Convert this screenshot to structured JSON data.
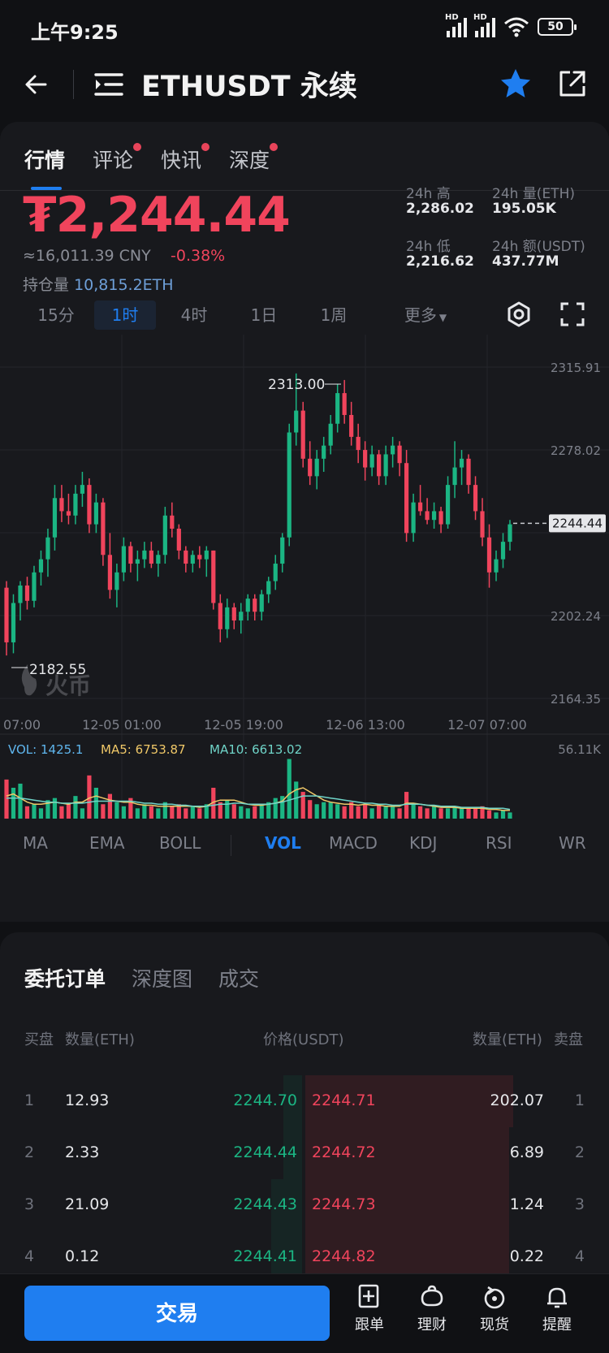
{
  "status_bar": {
    "time": "上午9:25",
    "signal_label": "HD",
    "battery": "50"
  },
  "header": {
    "title": "ETHUSDT 永续"
  },
  "tabs": [
    {
      "label": "行情",
      "dot": false
    },
    {
      "label": "评论",
      "dot": true
    },
    {
      "label": "快讯",
      "dot": true
    },
    {
      "label": "深度",
      "dot": true
    }
  ],
  "price": {
    "last": "₮2,244.44",
    "cny": "≈16,011.39 CNY",
    "change": "-0.38%",
    "open_interest_label": "持仓量",
    "open_interest_value": "10,815.2ETH"
  },
  "stats": {
    "high_label": "24h 高",
    "high": "2,286.02",
    "vol_label": "24h 量(ETH)",
    "vol": "195.05K",
    "low_label": "24h 低",
    "low": "2,216.62",
    "amount_label": "24h 额(USDT)",
    "amount": "437.77M"
  },
  "intervals": [
    "15分",
    "1时",
    "4时",
    "1日",
    "1周",
    "更多"
  ],
  "active_interval": "1时",
  "chart": {
    "y_labels": [
      "2315.91",
      "2278.02",
      "2202.24",
      "2164.35"
    ],
    "current_price_tag": "2244.44",
    "high_marker": "2313.00",
    "low_marker": "2182.55",
    "x_labels": [
      "07:00",
      "12-05 01:00",
      "12-05 19:00",
      "12-06 13:00",
      "12-07 07:00"
    ],
    "watermark": "火币",
    "vol_label": "VOL: 1425.1",
    "ma5_label": "MA5: 6753.87",
    "ma10_label": "MA10: 6613.02",
    "vol_max": "56.11K"
  },
  "chart_data": {
    "type": "candlestick",
    "ylim": [
      2164.35,
      2315.91
    ],
    "ohlc": [
      [
        2215,
        2218,
        2184,
        2190
      ],
      [
        2190,
        2212,
        2185,
        2208
      ],
      [
        2208,
        2218,
        2200,
        2216
      ],
      [
        2216,
        2220,
        2205,
        2209
      ],
      [
        2209,
        2225,
        2206,
        2222
      ],
      [
        2222,
        2232,
        2216,
        2228
      ],
      [
        2228,
        2242,
        2220,
        2238
      ],
      [
        2238,
        2262,
        2232,
        2256
      ],
      [
        2256,
        2262,
        2245,
        2250
      ],
      [
        2250,
        2258,
        2244,
        2248
      ],
      [
        2248,
        2262,
        2244,
        2258
      ],
      [
        2258,
        2268,
        2252,
        2262
      ],
      [
        2262,
        2265,
        2240,
        2244
      ],
      [
        2244,
        2258,
        2240,
        2254
      ],
      [
        2254,
        2256,
        2225,
        2230
      ],
      [
        2230,
        2240,
        2210,
        2214
      ],
      [
        2214,
        2226,
        2206,
        2222
      ],
      [
        2222,
        2238,
        2218,
        2234
      ],
      [
        2234,
        2236,
        2222,
        2226
      ],
      [
        2226,
        2232,
        2218,
        2228
      ],
      [
        2228,
        2236,
        2224,
        2232
      ],
      [
        2232,
        2236,
        2224,
        2226
      ],
      [
        2226,
        2232,
        2220,
        2230
      ],
      [
        2230,
        2252,
        2226,
        2248
      ],
      [
        2248,
        2254,
        2238,
        2242
      ],
      [
        2242,
        2244,
        2228,
        2232
      ],
      [
        2232,
        2234,
        2222,
        2226
      ],
      [
        2226,
        2232,
        2222,
        2230
      ],
      [
        2230,
        2234,
        2224,
        2228
      ],
      [
        2228,
        2234,
        2220,
        2232
      ],
      [
        2232,
        2232,
        2205,
        2208
      ],
      [
        2208,
        2212,
        2190,
        2196
      ],
      [
        2196,
        2210,
        2192,
        2206
      ],
      [
        2206,
        2208,
        2196,
        2200
      ],
      [
        2200,
        2208,
        2194,
        2204
      ],
      [
        2204,
        2212,
        2200,
        2210
      ],
      [
        2210,
        2212,
        2200,
        2204
      ],
      [
        2204,
        2214,
        2200,
        2212
      ],
      [
        2212,
        2220,
        2208,
        2218
      ],
      [
        2218,
        2230,
        2214,
        2226
      ],
      [
        2226,
        2240,
        2222,
        2238
      ],
      [
        2238,
        2290,
        2234,
        2286
      ],
      [
        2286,
        2313,
        2280,
        2296
      ],
      [
        2296,
        2300,
        2270,
        2274
      ],
      [
        2274,
        2282,
        2262,
        2266
      ],
      [
        2266,
        2278,
        2260,
        2274
      ],
      [
        2274,
        2284,
        2268,
        2280
      ],
      [
        2280,
        2294,
        2276,
        2290
      ],
      [
        2290,
        2308,
        2286,
        2304
      ],
      [
        2304,
        2310,
        2290,
        2294
      ],
      [
        2294,
        2300,
        2280,
        2284
      ],
      [
        2284,
        2290,
        2272,
        2278
      ],
      [
        2278,
        2282,
        2264,
        2270
      ],
      [
        2270,
        2280,
        2266,
        2276
      ],
      [
        2276,
        2278,
        2262,
        2266
      ],
      [
        2266,
        2280,
        2262,
        2276
      ],
      [
        2276,
        2284,
        2270,
        2280
      ],
      [
        2280,
        2282,
        2266,
        2272
      ],
      [
        2272,
        2278,
        2236,
        2240
      ],
      [
        2240,
        2258,
        2236,
        2254
      ],
      [
        2254,
        2262,
        2248,
        2250
      ],
      [
        2250,
        2256,
        2244,
        2246
      ],
      [
        2246,
        2254,
        2242,
        2250
      ],
      [
        2250,
        2252,
        2240,
        2244
      ],
      [
        2244,
        2266,
        2242,
        2262
      ],
      [
        2262,
        2282,
        2256,
        2270
      ],
      [
        2270,
        2278,
        2262,
        2274
      ],
      [
        2274,
        2276,
        2258,
        2262
      ],
      [
        2262,
        2266,
        2246,
        2250
      ],
      [
        2250,
        2256,
        2234,
        2238
      ],
      [
        2238,
        2244,
        2215,
        2222
      ],
      [
        2222,
        2232,
        2218,
        2228
      ],
      [
        2228,
        2240,
        2224,
        2236
      ],
      [
        2236,
        2246,
        2232,
        2244
      ]
    ],
    "volume": [
      38,
      30,
      34,
      12,
      14,
      10,
      18,
      20,
      12,
      14,
      22,
      10,
      42,
      30,
      14,
      24,
      16,
      12,
      20,
      10,
      14,
      12,
      10,
      16,
      12,
      14,
      10,
      12,
      10,
      14,
      30,
      16,
      18,
      14,
      12,
      10,
      12,
      14,
      16,
      20,
      22,
      58,
      36,
      26,
      18,
      14,
      16,
      16,
      14,
      12,
      16,
      12,
      14,
      10,
      14,
      12,
      12,
      10,
      26,
      14,
      12,
      10,
      12,
      10,
      10,
      12,
      10,
      10,
      10,
      12,
      8,
      6,
      8,
      6
    ],
    "ma5": [
      22,
      24,
      20,
      16,
      14,
      14,
      15,
      16,
      15,
      14,
      16,
      16,
      20,
      22,
      20,
      18,
      17,
      16,
      16,
      14,
      13,
      13,
      12,
      12,
      12,
      12,
      12,
      12,
      11,
      12,
      16,
      18,
      18,
      18,
      16,
      14,
      13,
      13,
      14,
      15,
      17,
      24,
      28,
      30,
      26,
      22,
      18,
      16,
      15,
      14,
      14,
      13,
      14,
      13,
      13,
      12,
      12,
      12,
      15,
      15,
      14,
      13,
      12,
      11,
      11,
      11,
      10,
      10,
      10,
      10,
      9,
      9,
      8,
      8
    ],
    "ma10": [
      20,
      20,
      20,
      19,
      18,
      17,
      16,
      16,
      15,
      15,
      15,
      15,
      16,
      17,
      17,
      17,
      17,
      17,
      17,
      16,
      15,
      15,
      14,
      14,
      14,
      13,
      13,
      12,
      12,
      12,
      13,
      14,
      14,
      15,
      15,
      14,
      14,
      14,
      14,
      15,
      16,
      18,
      20,
      22,
      22,
      22,
      21,
      20,
      19,
      18,
      17,
      16,
      15,
      15,
      14,
      14,
      13,
      13,
      14,
      14,
      14,
      13,
      13,
      12,
      12,
      12,
      11,
      11,
      11,
      11,
      10,
      10,
      10,
      9
    ]
  },
  "indicators": [
    "MA",
    "EMA",
    "BOLL",
    "VOL",
    "MACD",
    "KDJ",
    "RSI",
    "WR"
  ],
  "active_indicator": "VOL",
  "orderbook": {
    "tabs": [
      "委托订单",
      "深度图",
      "成交"
    ],
    "head_bid": "买盘",
    "head_qty_left": "数量(ETH)",
    "head_price": "价格(USDT)",
    "head_qty_right": "数量(ETH)",
    "head_ask": "卖盘",
    "rows": [
      {
        "idx": "1",
        "bid_qty": "12.93",
        "bid_price": "2244.70",
        "ask_price": "2244.71",
        "ask_qty": "202.07",
        "bid_depth": 0.12,
        "ask_depth": 1.0
      },
      {
        "idx": "2",
        "bid_qty": "2.33",
        "bid_price": "2244.44",
        "ask_price": "2244.72",
        "ask_qty": "6.89",
        "bid_depth": 0.12,
        "ask_depth": 0.98
      },
      {
        "idx": "3",
        "bid_qty": "21.09",
        "bid_price": "2244.43",
        "ask_price": "2244.73",
        "ask_qty": "1.24",
        "bid_depth": 0.2,
        "ask_depth": 0.98
      },
      {
        "idx": "4",
        "bid_qty": "0.12",
        "bid_price": "2244.41",
        "ask_price": "2244.82",
        "ask_qty": "0.22",
        "bid_depth": 0.2,
        "ask_depth": 0.98
      }
    ]
  },
  "bottom_bar": {
    "trade_label": "交易",
    "nav": [
      "跟单",
      "理财",
      "现货",
      "提醒"
    ]
  },
  "colors": {
    "up": "#1bb583",
    "down": "#f0445c",
    "accent": "#1f7ef0"
  }
}
